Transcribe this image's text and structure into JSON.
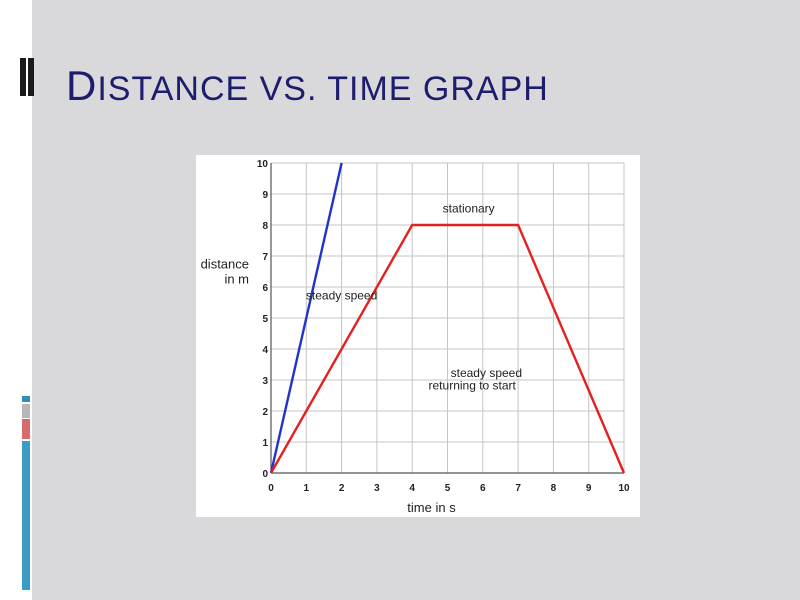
{
  "slide": {
    "title_first_letter": "D",
    "title_rest": "ISTANCE VS. TIME GRAPH",
    "background_color": "#d9d9dc",
    "title_color": "#1d1d6e"
  },
  "chart_data": {
    "type": "line",
    "title": "",
    "xlabel": "time in s",
    "ylabel_line1": "distance",
    "ylabel_line2": "in m",
    "xlim": [
      0,
      10
    ],
    "ylim": [
      0,
      10
    ],
    "x_ticks": [
      "0",
      "1",
      "2",
      "3",
      "4",
      "5",
      "6",
      "7",
      "8",
      "9",
      "10"
    ],
    "y_ticks": [
      "0",
      "1",
      "2",
      "3",
      "4",
      "5",
      "6",
      "7",
      "8",
      "9",
      "10"
    ],
    "grid": true,
    "series": [
      {
        "color": "#2233cc",
        "x": [
          0,
          2
        ],
        "y": [
          0,
          10
        ]
      },
      {
        "color": "#e42020",
        "x": [
          0,
          4,
          7,
          10
        ],
        "y": [
          0,
          8,
          8,
          0
        ]
      }
    ],
    "annotations": [
      {
        "text": "stationary",
        "x": 5.6,
        "y": 8.4
      },
      {
        "text": "steady speed",
        "x": 2.0,
        "y": 5.6
      },
      {
        "text": "steady speed",
        "x": 6.1,
        "y": 3.1
      },
      {
        "text": "returning to start",
        "x": 5.7,
        "y": 2.7
      }
    ]
  }
}
